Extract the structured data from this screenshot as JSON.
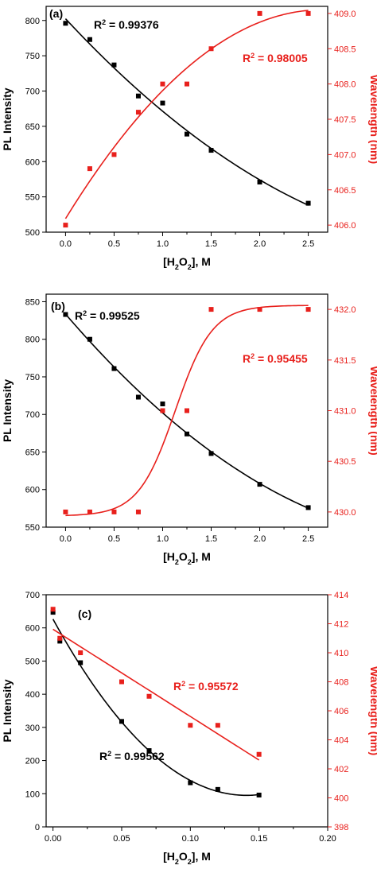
{
  "colors": {
    "black_series": "#000000",
    "red_series": "#e8201c"
  },
  "chart_data": [
    {
      "type": "scatter",
      "panel_label": "(a)",
      "xlabel": "[H2O2], M",
      "ylabel_left": "PL Intensity",
      "ylabel_right": "Wavelength (nm)",
      "xlim": [
        -0.2,
        2.7
      ],
      "ylim_left": [
        500,
        820
      ],
      "ylim_right": [
        405.9,
        409.1
      ],
      "x_ticks": [
        "0.0",
        "0.5",
        "1.0",
        "1.5",
        "2.0",
        "2.5"
      ],
      "y_left_ticks": [
        "500",
        "550",
        "600",
        "650",
        "700",
        "750",
        "800"
      ],
      "y_right_ticks": [
        "406.0",
        "406.5",
        "407.0",
        "407.5",
        "408.0",
        "408.5",
        "409.0"
      ],
      "series": [
        {
          "axis": "left",
          "color": "#000000",
          "x": [
            0,
            0.25,
            0.5,
            0.75,
            1.0,
            1.25,
            1.5,
            2.0,
            2.5
          ],
          "y": [
            796,
            773,
            737,
            693,
            683,
            639,
            616,
            571,
            541
          ],
          "fit": "poly2",
          "r2": "0.99376"
        },
        {
          "axis": "right",
          "color": "#e8201c",
          "x": [
            0,
            0.25,
            0.5,
            0.75,
            1.0,
            1.25,
            1.5,
            2.0,
            2.5
          ],
          "y": [
            406.0,
            406.8,
            407.0,
            407.6,
            408.0,
            408.0,
            408.5,
            409.0,
            409.0
          ],
          "fit": "poly2",
          "r2": "0.98005"
        }
      ]
    },
    {
      "type": "scatter",
      "panel_label": "(b)",
      "xlabel": "[H2O2], M",
      "ylabel_left": "PL Intensity",
      "ylabel_right": "Wavelength (nm)",
      "xlim": [
        -0.2,
        2.7
      ],
      "ylim_left": [
        550,
        860
      ],
      "ylim_right": [
        429.85,
        432.15
      ],
      "x_ticks": [
        "0.0",
        "0.5",
        "1.0",
        "1.5",
        "2.0",
        "2.5"
      ],
      "y_left_ticks": [
        "550",
        "600",
        "650",
        "700",
        "750",
        "800",
        "850"
      ],
      "y_right_ticks": [
        "430.0",
        "430.5",
        "431.0",
        "431.5",
        "432.0"
      ],
      "series": [
        {
          "axis": "left",
          "color": "#000000",
          "x": [
            0,
            0.25,
            0.5,
            0.75,
            1.0,
            1.25,
            1.5,
            2.0,
            2.5
          ],
          "y": [
            833,
            800,
            761,
            723,
            714,
            674,
            648,
            607,
            576
          ],
          "fit": "poly2",
          "r2": "0.99525"
        },
        {
          "axis": "right",
          "color": "#e8201c",
          "x": [
            0,
            0.25,
            0.5,
            0.75,
            1.0,
            1.25,
            1.5,
            2.0,
            2.5
          ],
          "y": [
            430.0,
            430.0,
            430.0,
            430.0,
            431.0,
            431.0,
            432.0,
            432.0,
            432.0
          ],
          "fit": "sigmoid",
          "r2": "0.95455"
        }
      ]
    },
    {
      "type": "scatter",
      "panel_label": "(c)",
      "xlabel": "[H2O2], M",
      "ylabel_left": "PL Intensity",
      "ylabel_right": "Wavelength (nm)",
      "xlim": [
        -0.005,
        0.2
      ],
      "ylim_left": [
        0,
        700
      ],
      "ylim_right": [
        398,
        414
      ],
      "x_ticks": [
        "0.00",
        "0.05",
        "0.10",
        "0.15",
        "0.20"
      ],
      "y_left_ticks": [
        "0",
        "100",
        "200",
        "300",
        "400",
        "500",
        "600",
        "700"
      ],
      "y_right_ticks": [
        "398",
        "400",
        "402",
        "404",
        "406",
        "408",
        "410",
        "412",
        "414"
      ],
      "series": [
        {
          "axis": "left",
          "color": "#000000",
          "x": [
            0,
            0.005,
            0.02,
            0.05,
            0.07,
            0.1,
            0.12,
            0.15
          ],
          "y": [
            647,
            560,
            495,
            318,
            230,
            133,
            113,
            96
          ],
          "fit": "poly2",
          "r2": "0.99562"
        },
        {
          "axis": "right",
          "color": "#e8201c",
          "x": [
            0,
            0.005,
            0.02,
            0.05,
            0.07,
            0.1,
            0.12,
            0.15
          ],
          "y": [
            413,
            411,
            410,
            408,
            407,
            405,
            405,
            403
          ],
          "fit": "linear",
          "r2": "0.95572"
        }
      ]
    }
  ],
  "text": {
    "r2_prefix": "R",
    "r2_sup": "2",
    "r2_eq": " = ",
    "xlabel_parts": [
      "[H",
      "2",
      "O",
      "2",
      "], M"
    ]
  }
}
